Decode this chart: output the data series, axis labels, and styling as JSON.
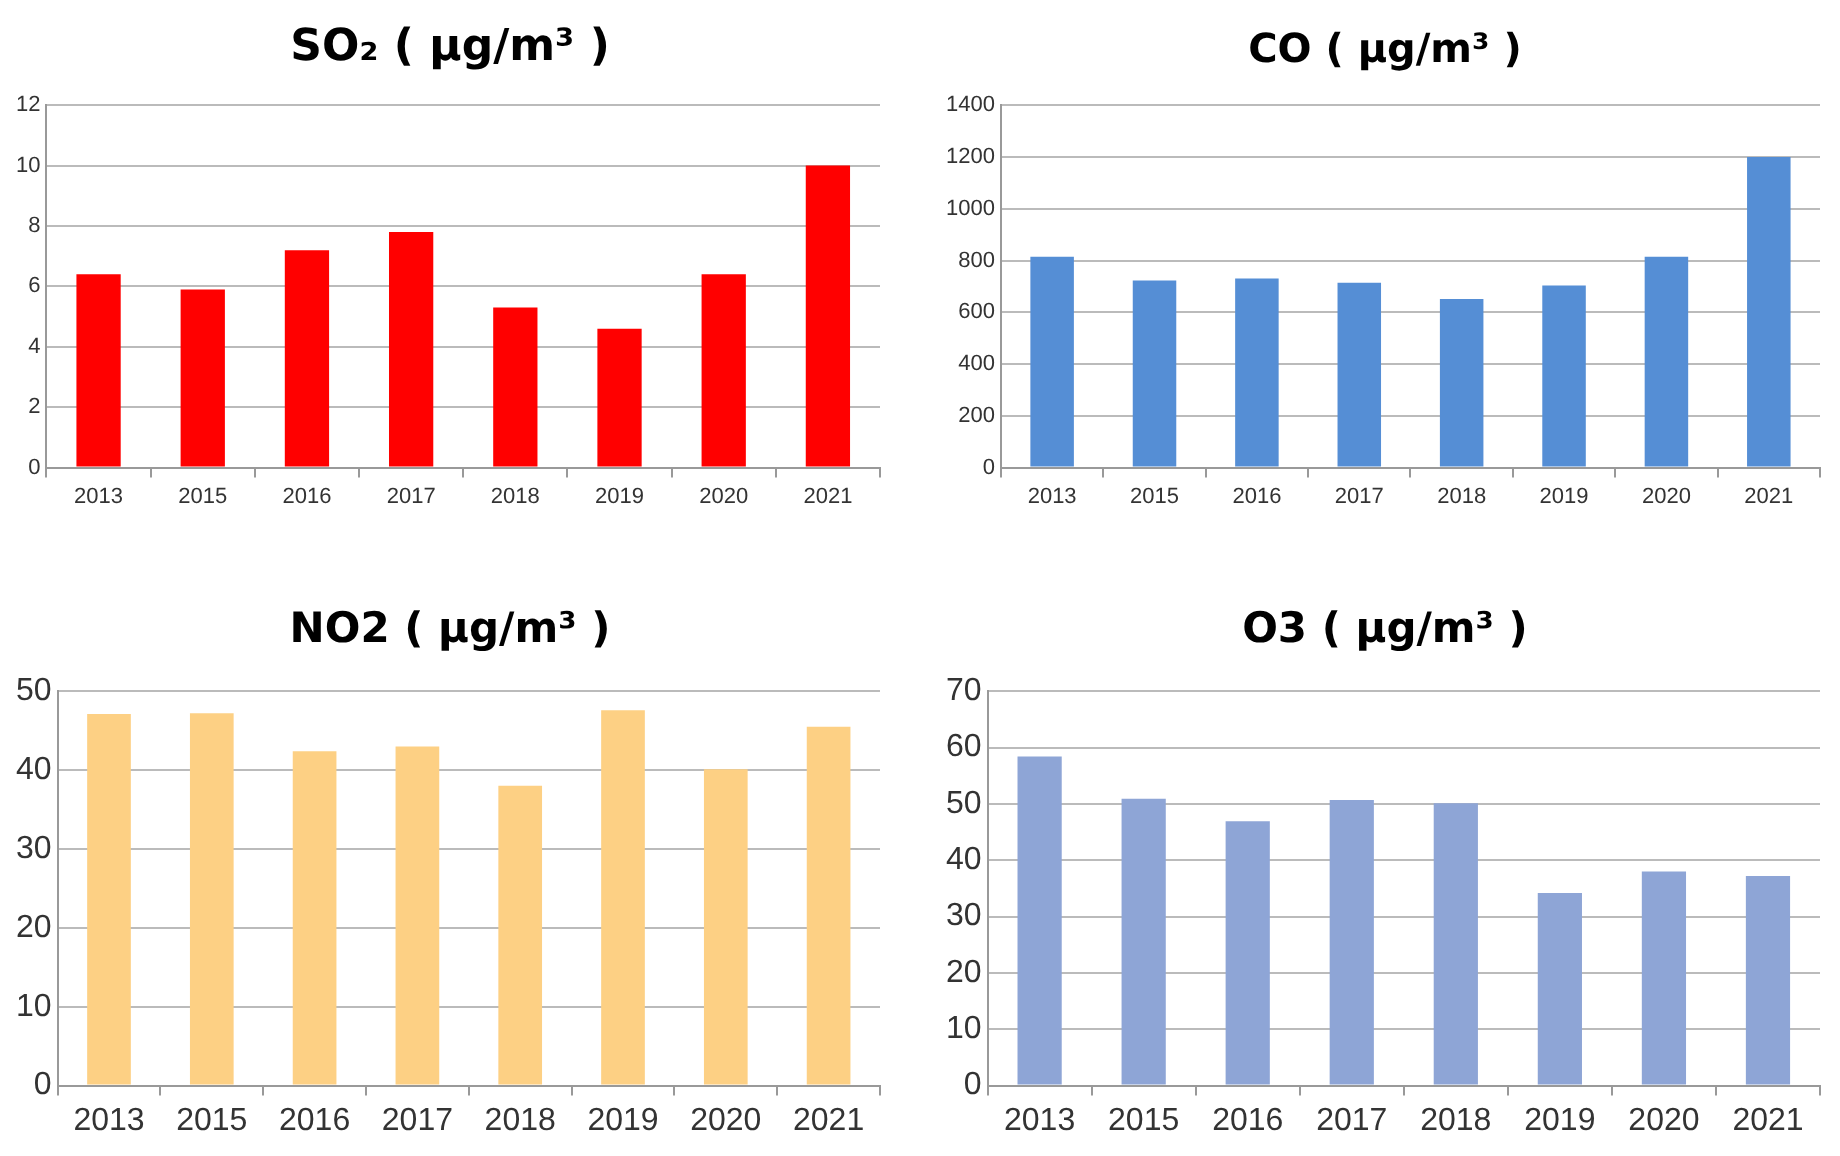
{
  "chart_data": [
    {
      "type": "bar",
      "title": "SO₂ ( µg/m³ )",
      "categories": [
        "2013",
        "2015",
        "2016",
        "2017",
        "2018",
        "2019",
        "2020",
        "2021"
      ],
      "values": [
        6.4,
        5.9,
        7.2,
        7.8,
        5.3,
        4.6,
        6.4,
        10.0
      ],
      "color": "#ff0000",
      "ylim": [
        0,
        12
      ],
      "yticks": [
        0,
        2,
        4,
        6,
        8,
        10,
        12
      ],
      "grid": "y"
    },
    {
      "type": "bar",
      "title": "CO ( µg/m³ )",
      "categories": [
        "2013",
        "2015",
        "2016",
        "2017",
        "2018",
        "2019",
        "2020",
        "2021"
      ],
      "values": [
        815,
        723,
        731,
        714,
        651,
        703,
        815,
        1200
      ],
      "color": "#558ed5",
      "ylim": [
        0,
        1400
      ],
      "yticks": [
        0,
        200,
        400,
        600,
        800,
        1000,
        1200,
        1400
      ],
      "grid": "y"
    },
    {
      "type": "bar",
      "title": "NO2 ( µg/m³ )",
      "categories": [
        "2013",
        "2015",
        "2016",
        "2017",
        "2018",
        "2019",
        "2020",
        "2021"
      ],
      "values": [
        47.1,
        47.2,
        42.4,
        43.0,
        38.0,
        47.6,
        40.1,
        45.5
      ],
      "color": "#fdd084",
      "ylim": [
        0,
        50
      ],
      "yticks": [
        0,
        10,
        20,
        30,
        40,
        50
      ],
      "grid": "y"
    },
    {
      "type": "bar",
      "title": "O3 ( µg/m³ )",
      "categories": [
        "2013",
        "2015",
        "2016",
        "2017",
        "2018",
        "2019",
        "2020",
        "2021"
      ],
      "values": [
        58.4,
        50.9,
        46.9,
        50.7,
        50.1,
        34.2,
        38.0,
        37.2
      ],
      "color": "#8ea5d6",
      "ylim": [
        0,
        70
      ],
      "yticks": [
        0,
        10,
        20,
        30,
        40,
        50,
        60,
        70
      ],
      "grid": "y"
    }
  ]
}
